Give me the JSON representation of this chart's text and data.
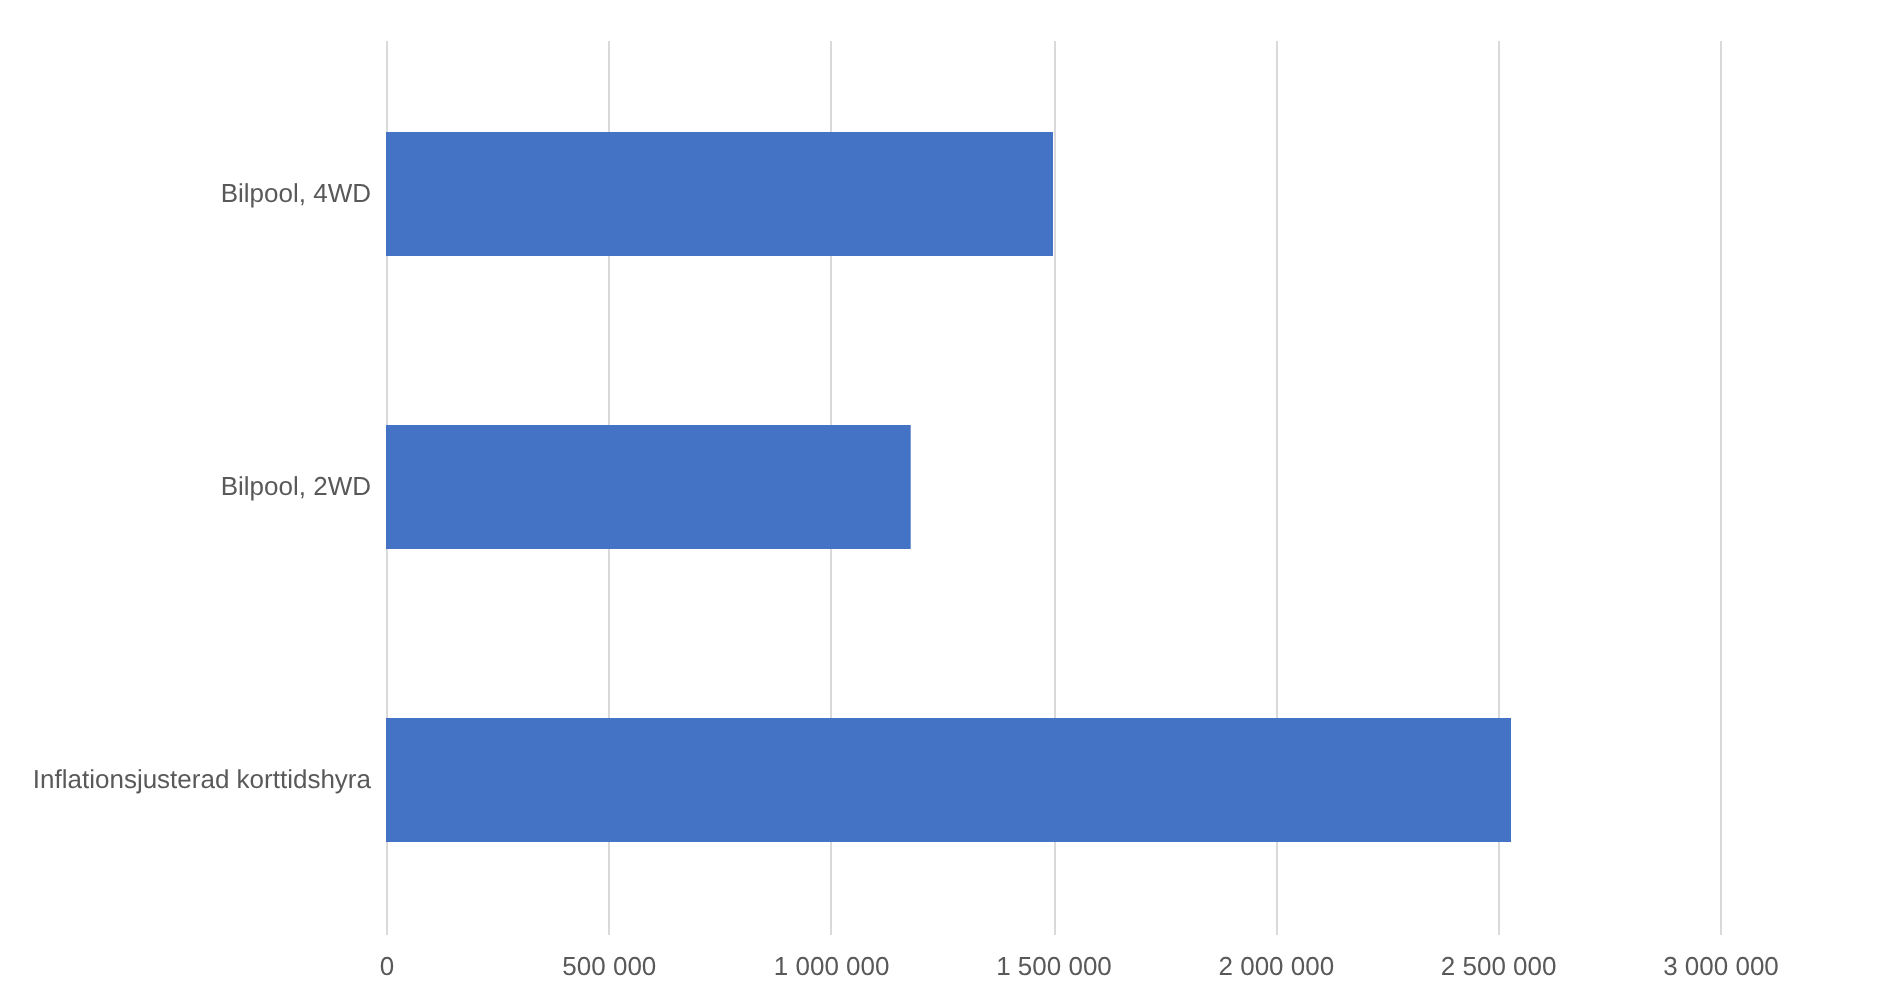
{
  "chart_data": {
    "type": "bar",
    "orientation": "horizontal",
    "categories": [
      "Bilpool, 4WD",
      "Bilpool, 2WD",
      "Inflationsjusterad korttidshyra"
    ],
    "values": [
      1500000,
      1180000,
      2530000
    ],
    "color": "#4472c4",
    "xlim": [
      0,
      3000000
    ],
    "xticks": [
      0,
      {
        "value": 500000,
        "label": "500 000"
      },
      {
        "value": 1000000,
        "label": "1 000 000"
      },
      {
        "value": 1500000,
        "label": "1 500 000"
      },
      {
        "value": 2000000,
        "label": "2 000 000"
      },
      {
        "value": 2500000,
        "label": "2 500 000"
      },
      {
        "value": 3000000,
        "label": "3 000 000"
      }
    ],
    "grid": "x"
  }
}
